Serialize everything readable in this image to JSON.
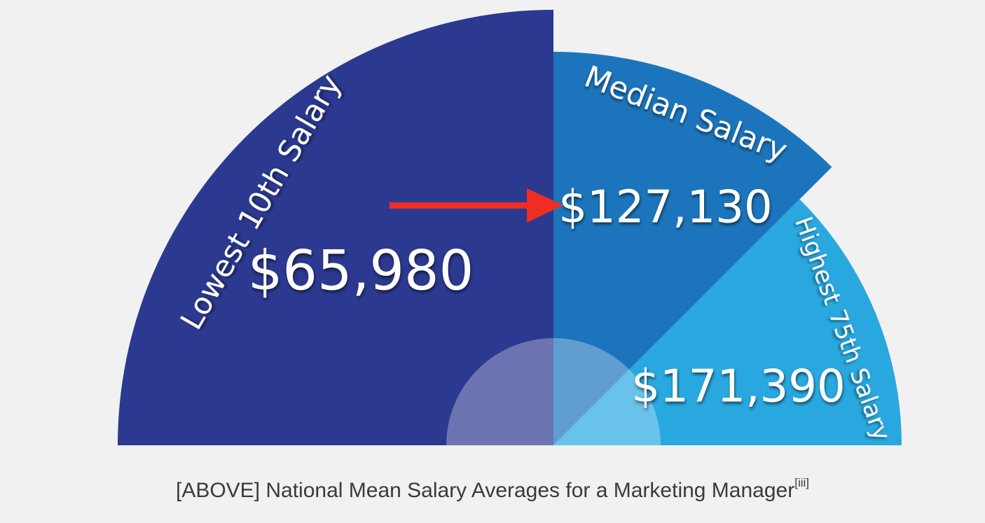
{
  "chart_data": {
    "type": "pie",
    "title": "",
    "segments": [
      {
        "label": "Lowest 10th Salary",
        "value": "$65,980",
        "amount": 65980,
        "color": "#2b3990"
      },
      {
        "label": "Median Salary",
        "value": "$127,130",
        "amount": 127130,
        "color": "#1c75bc"
      },
      {
        "label": "Highest 75th Salary",
        "value": "$171,390",
        "amount": 171390,
        "color": "#29a8e0"
      }
    ],
    "annotation": {
      "type": "arrow",
      "color": "#ee2e24",
      "points_to": "Median Salary"
    },
    "center_overlay_color": "#ffffff"
  },
  "caption": {
    "text": "[ABOVE] National Mean Salary Averages for a Marketing Manager",
    "footnote": "[iii]"
  }
}
